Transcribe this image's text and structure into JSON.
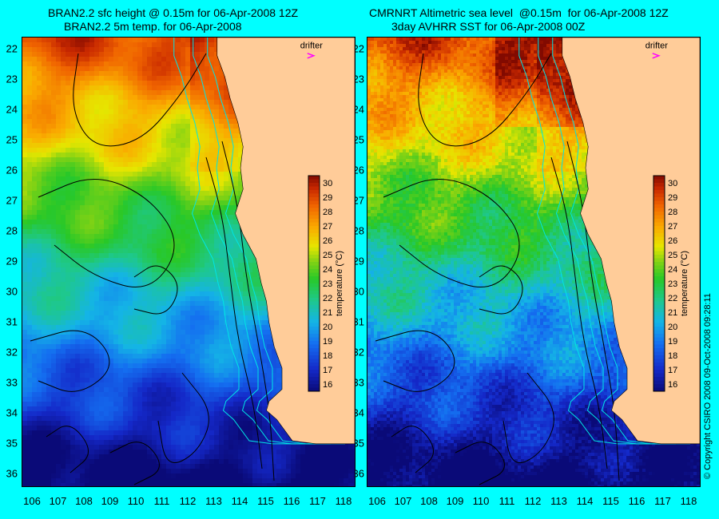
{
  "titles": {
    "left": {
      "line1": "BRAN2.2 sfc height @ 0.15m for 06-Apr-2008 12Z",
      "line2": "BRAN2.2 5m temp. for 06-Apr-2008"
    },
    "right": {
      "line1": "CMRNRT Altimetric sea level  @0.15m  for 06-Apr-2008 12Z",
      "line2": "3day AVHRR SST for 06-Apr-2008 00Z"
    }
  },
  "drifter_label": "drifter",
  "colorbar": {
    "label": "temperature (°C)",
    "ticks": [
      "30",
      "29",
      "28",
      "27",
      "26",
      "25",
      "24",
      "23",
      "22",
      "21",
      "20",
      "19",
      "18",
      "17",
      "16"
    ],
    "range": [
      15.5,
      30.5
    ]
  },
  "map": {
    "lat_labels": [
      "22",
      "23",
      "24",
      "25",
      "26",
      "27",
      "28",
      "29",
      "30",
      "31",
      "32",
      "33",
      "34",
      "35",
      "36"
    ],
    "lon_labels": [
      "106",
      "107",
      "108",
      "109",
      "110",
      "111",
      "112",
      "113",
      "114",
      "115",
      "116",
      "117",
      "118"
    ],
    "lon_range": [
      105.6,
      118.4
    ],
    "lat_range": [
      21.6,
      36.4
    ],
    "land_color": "#ffcc99",
    "background_color": "#00ffff",
    "contour_color": "#000000",
    "bathymetry_color": "#00e5e5",
    "drifter_color": "#ff00ff"
  },
  "copyright": "© Copyright CSIRO 2008   09-Oct-2008 09:28:11"
}
